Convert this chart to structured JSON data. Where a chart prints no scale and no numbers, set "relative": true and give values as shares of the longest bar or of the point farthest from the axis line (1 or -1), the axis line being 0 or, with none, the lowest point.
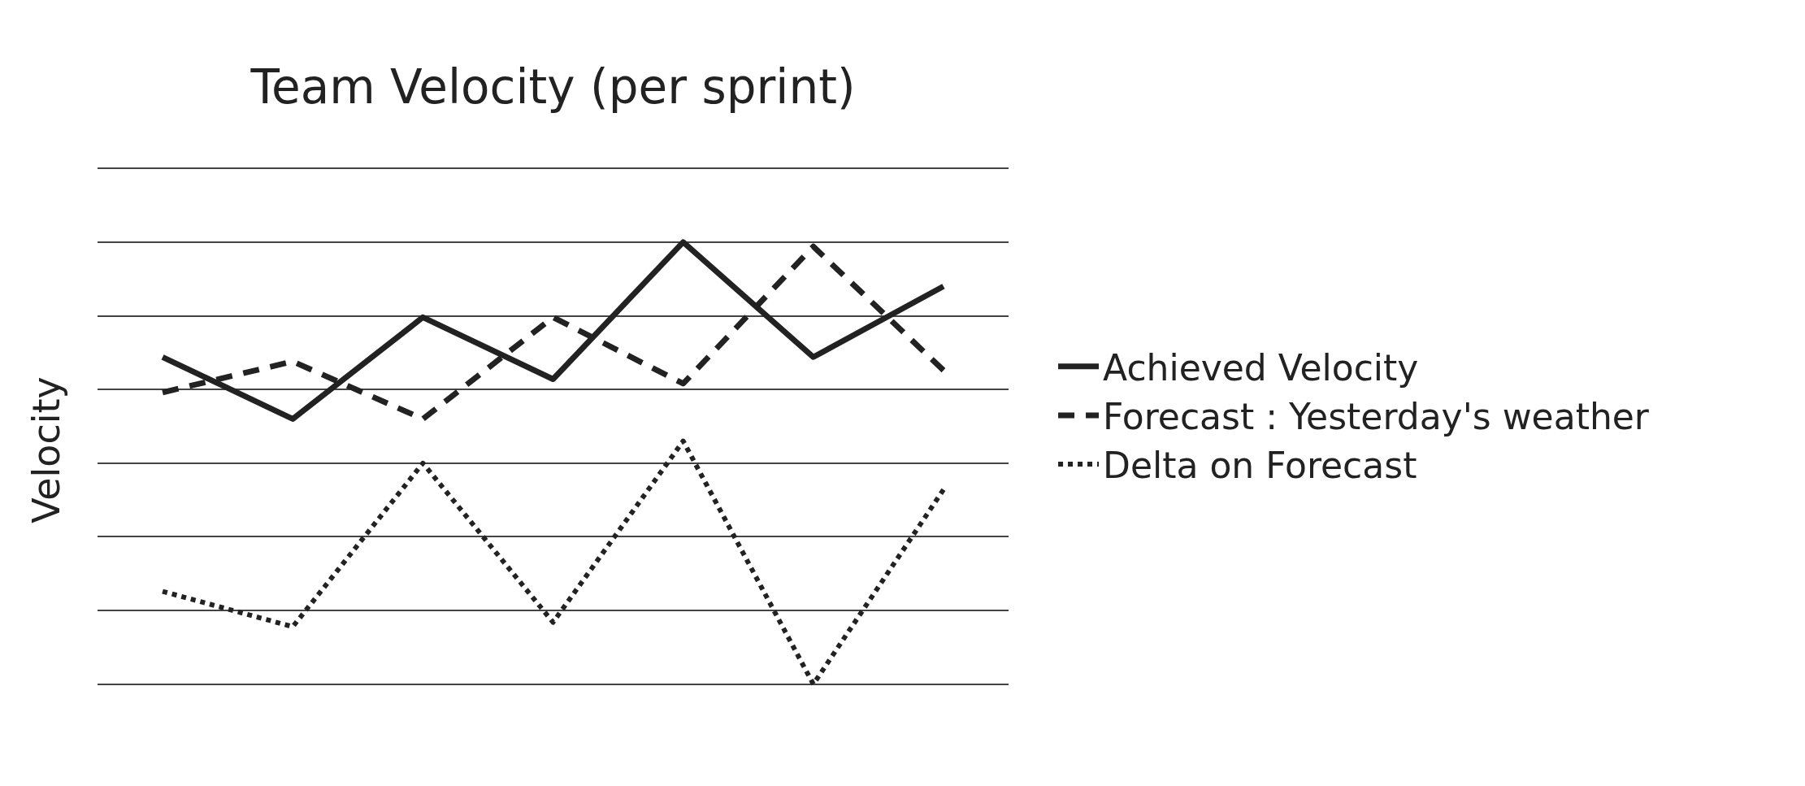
{
  "chart_data": {
    "type": "line",
    "title": "Team Velocity (per sprint)",
    "ylabel": "Velocity",
    "relative": true,
    "categories": [
      null,
      null,
      null,
      null,
      null,
      null,
      null
    ],
    "series": [
      {
        "name": "Achieved Velocity",
        "color": "#222222",
        "line_style": "solid",
        "values": [
          0.74,
          0.6,
          0.83,
          0.69,
          1.0,
          0.74,
          0.9
        ]
      },
      {
        "name": "Forecast : Yesterday's weather",
        "color": "#222222",
        "line_style": "dashed",
        "values": [
          0.66,
          0.73,
          0.6,
          0.83,
          0.68,
          0.99,
          0.71
        ]
      },
      {
        "name": "Delta on Forecast",
        "color": "#222222",
        "line_style": "dotted",
        "values": [
          0.21,
          0.13,
          0.5,
          0.14,
          0.55,
          0.0,
          0.44
        ]
      }
    ],
    "grid": "y",
    "legend": "right"
  }
}
